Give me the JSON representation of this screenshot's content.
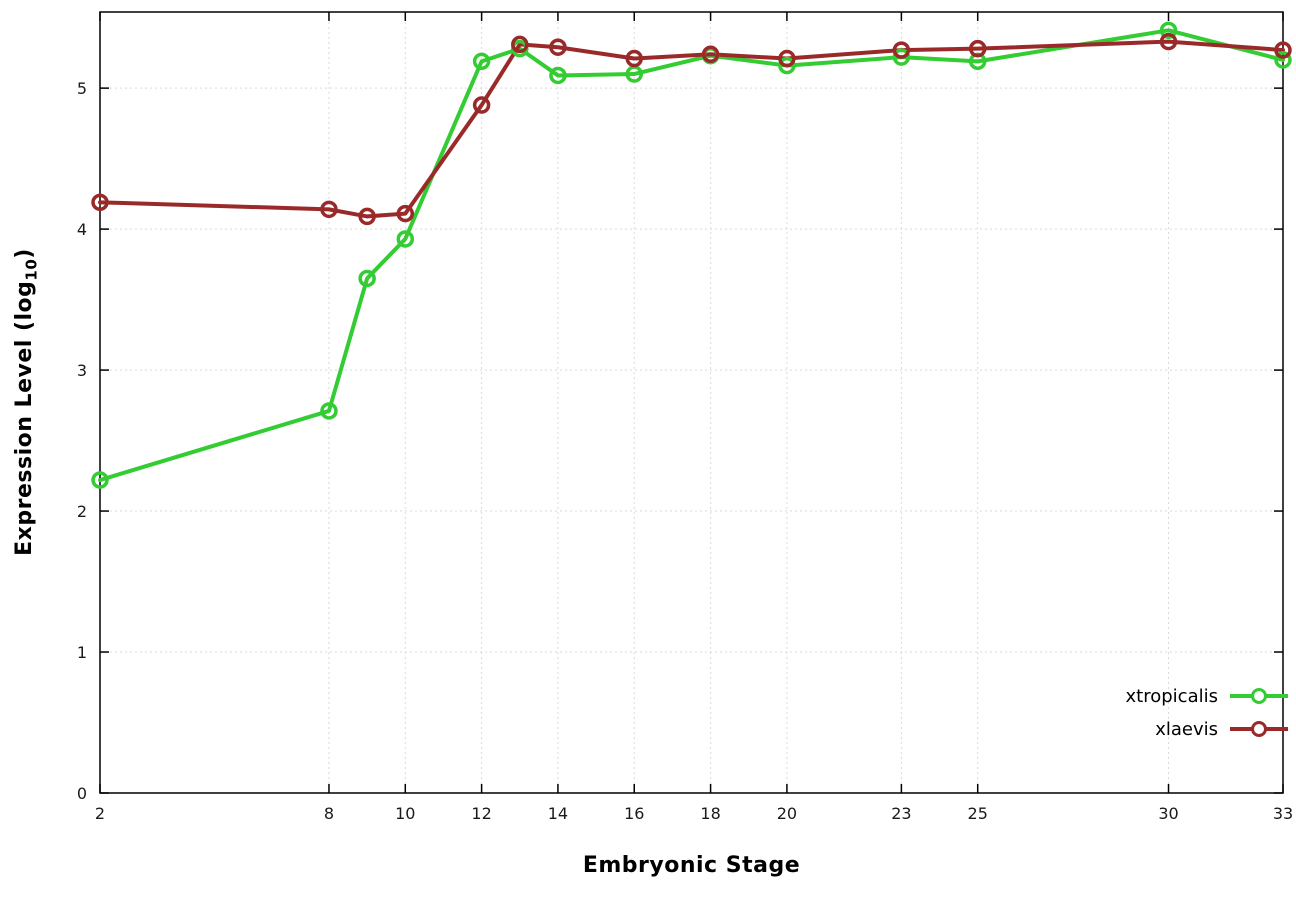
{
  "chart_data": {
    "type": "line",
    "title": "",
    "xlabel": "Embryonic Stage",
    "ylabel_prefix": "Expression Level (log",
    "ylabel_sub": "10",
    "ylabel_suffix": ")",
    "xlim": [
      2,
      33
    ],
    "ylim": [
      0,
      5.54
    ],
    "xticks": [
      2,
      8,
      10,
      12,
      14,
      16,
      18,
      20,
      23,
      25,
      30,
      33
    ],
    "yticks": [
      0,
      1,
      2,
      3,
      4,
      5
    ],
    "grid": true,
    "grid_style": "dotted",
    "legend_position": "inside-bottom-right",
    "marker": "open-circle",
    "x": [
      2,
      8,
      9,
      10,
      12,
      13,
      14,
      16,
      18,
      20,
      23,
      25,
      30,
      33
    ],
    "series": [
      {
        "name": "xtropicalis",
        "color": "#33cc33",
        "values": [
          2.22,
          2.71,
          3.65,
          3.93,
          5.19,
          5.28,
          5.09,
          5.1,
          5.23,
          5.16,
          5.22,
          5.19,
          5.41,
          5.2
        ]
      },
      {
        "name": "xlaevis",
        "color": "#9a2a2a",
        "values": [
          4.19,
          4.14,
          4.09,
          4.11,
          4.88,
          5.31,
          5.29,
          5.21,
          5.24,
          5.21,
          5.27,
          5.28,
          5.33,
          5.27
        ]
      }
    ]
  },
  "layout_colors": {
    "grid": "#d9d9d9",
    "border": "#000000",
    "tick_text": "#1a1a1a"
  }
}
